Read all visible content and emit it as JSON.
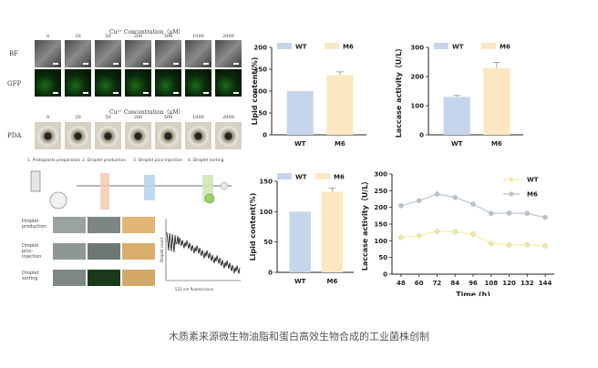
{
  "caption": "木质素来源微生物油脂和蛋白高效生物合成的工业菌株创制",
  "micrograph_panel": {
    "concentration_title": "Cu²⁺ Concentration（μM）",
    "concentration_title_2": "Cu²⁺ Concentration（μM）",
    "concentrations": [
      "0",
      "20",
      "50",
      "200",
      "500",
      "1000",
      "2000"
    ],
    "row_labels": {
      "bf": "BF",
      "gfp": "GFP",
      "pda": "PDA"
    }
  },
  "workflow_panel": {
    "steps": [
      "1. Protoplasts preparation",
      "2. Droplet production",
      "3. Droplet pico-injection",
      "4. Droplet sorting"
    ],
    "row_labels": [
      "Droplet production",
      "Droplet pico-injection",
      "Droplet sorting"
    ],
    "histogram_xlabel": "532 nm fluorescence",
    "histogram_ylabel": "Droplet count"
  },
  "colors": {
    "wt": "#c5d6ec",
    "m6": "#fbe8c3",
    "wt_line": "#c3ccd6",
    "m6_line": "#f7efb4",
    "error": "#8e8e8e"
  },
  "chart_data": [
    {
      "id": "lipid_top",
      "type": "bar",
      "categories": [
        "WT",
        "M6"
      ],
      "values": [
        100,
        137
      ],
      "errors": [
        0,
        7
      ],
      "title": "",
      "xlabel": "",
      "ylabel": "Lipid content(%)",
      "ylim": [
        0,
        200
      ],
      "yticks": [
        0,
        50,
        100,
        150,
        200
      ],
      "legend": [
        "WT",
        "M6"
      ],
      "legend_position": "top"
    },
    {
      "id": "laccase_bar",
      "type": "bar",
      "categories": [
        "WT",
        "M6"
      ],
      "values": [
        130,
        230
      ],
      "errors": [
        5,
        18
      ],
      "title": "",
      "xlabel": "",
      "ylabel": "Laccase activity（U/L）",
      "ylim": [
        0,
        300
      ],
      "yticks": [
        0,
        100,
        200,
        300
      ],
      "legend": [
        "WT",
        "M6"
      ],
      "legend_position": "top"
    },
    {
      "id": "lipid_bottom",
      "type": "bar",
      "categories": [
        "WT",
        "M6"
      ],
      "values": [
        100,
        133
      ],
      "errors": [
        0,
        6
      ],
      "title": "",
      "xlabel": "",
      "ylabel": "Lipid content(%)",
      "ylim": [
        0,
        150
      ],
      "yticks": [
        0,
        50,
        100,
        150
      ],
      "legend": [
        "WT",
        "M6"
      ],
      "legend_position": "top-left"
    },
    {
      "id": "laccase_time",
      "type": "line",
      "x": [
        48,
        60,
        72,
        84,
        96,
        108,
        120,
        132,
        144
      ],
      "series": [
        {
          "name": "WT",
          "values": [
            110,
            115,
            128,
            127,
            120,
            92,
            88,
            88,
            85
          ]
        },
        {
          "name": "M6",
          "values": [
            205,
            220,
            240,
            230,
            210,
            182,
            183,
            182,
            170
          ]
        }
      ],
      "title": "",
      "xlabel": "Time (h)",
      "ylabel": "Laccase activity（U/L）",
      "ylim": [
        0,
        300
      ],
      "yticks": [
        0,
        50,
        100,
        150,
        200,
        250,
        300
      ],
      "legend_position": "top-right"
    }
  ]
}
